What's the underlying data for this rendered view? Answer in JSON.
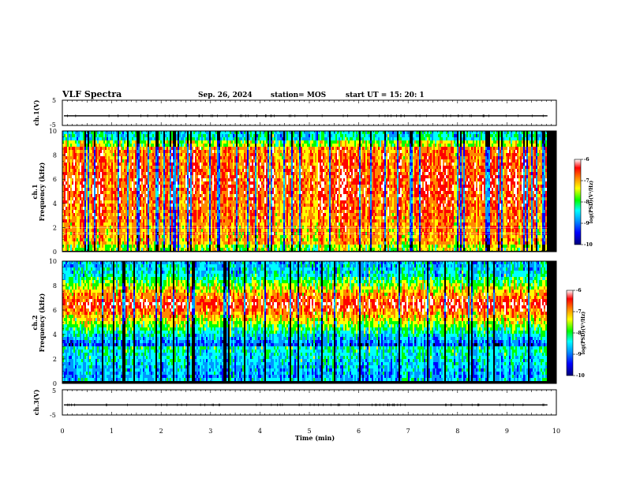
{
  "header": {
    "title": "VLF Spectra",
    "date": "Sep. 26, 2024",
    "station": "station= MOS",
    "start": "start  UT  =   15: 20: 1"
  },
  "chart_data": [
    {
      "type": "line",
      "name": "channel-1-waveform",
      "ylabel": "ch.1(V)",
      "yticks": [
        "5",
        "-5"
      ],
      "ylim": [
        -5,
        5
      ],
      "level": -1.2
    },
    {
      "type": "heatmap",
      "name": "channel-1-spectrogram",
      "ylabel_line1": "ch.1",
      "ylabel_line2": "Frequency (kHz)",
      "yticks": [
        "0",
        "2",
        "4",
        "6",
        "8",
        "10"
      ],
      "ylim": [
        0,
        10
      ],
      "colorbar": {
        "label": "log(PSD)(V²/Hz)",
        "ticks": [
          "-6",
          "-7",
          "-8",
          "-9",
          "-10"
        ],
        "range": [
          -10,
          -6
        ]
      }
    },
    {
      "type": "heatmap",
      "name": "channel-2-spectrogram",
      "ylabel_line1": "ch.2",
      "ylabel_line2": "Frequency (kHz)",
      "yticks": [
        "0",
        "2",
        "4",
        "6",
        "8",
        "10"
      ],
      "ylim": [
        0,
        10
      ],
      "colorbar": {
        "label": "log(PSD)(V²/Hz)",
        "ticks": [
          "-6",
          "-7",
          "-8",
          "-9",
          "-10"
        ],
        "range": [
          -10,
          -6
        ]
      }
    },
    {
      "type": "line",
      "name": "channel-3-waveform",
      "ylabel": "ch.3(V)",
      "yticks": [
        "5",
        "-5"
      ],
      "ylim": [
        -5,
        5
      ],
      "level": -1.0
    }
  ],
  "x_axis": {
    "label": "Time  (min)",
    "ticks": [
      "0",
      "1",
      "2",
      "3",
      "4",
      "5",
      "6",
      "7",
      "8",
      "9",
      "10"
    ],
    "range": [
      0,
      10
    ],
    "data_end": 9.82
  },
  "colors": {
    "scale": [
      "#00007a",
      "#0000ff",
      "#0096ff",
      "#00ffff",
      "#00ff00",
      "#ffff00",
      "#ff8800",
      "#ff0000",
      "#ffffff"
    ]
  }
}
